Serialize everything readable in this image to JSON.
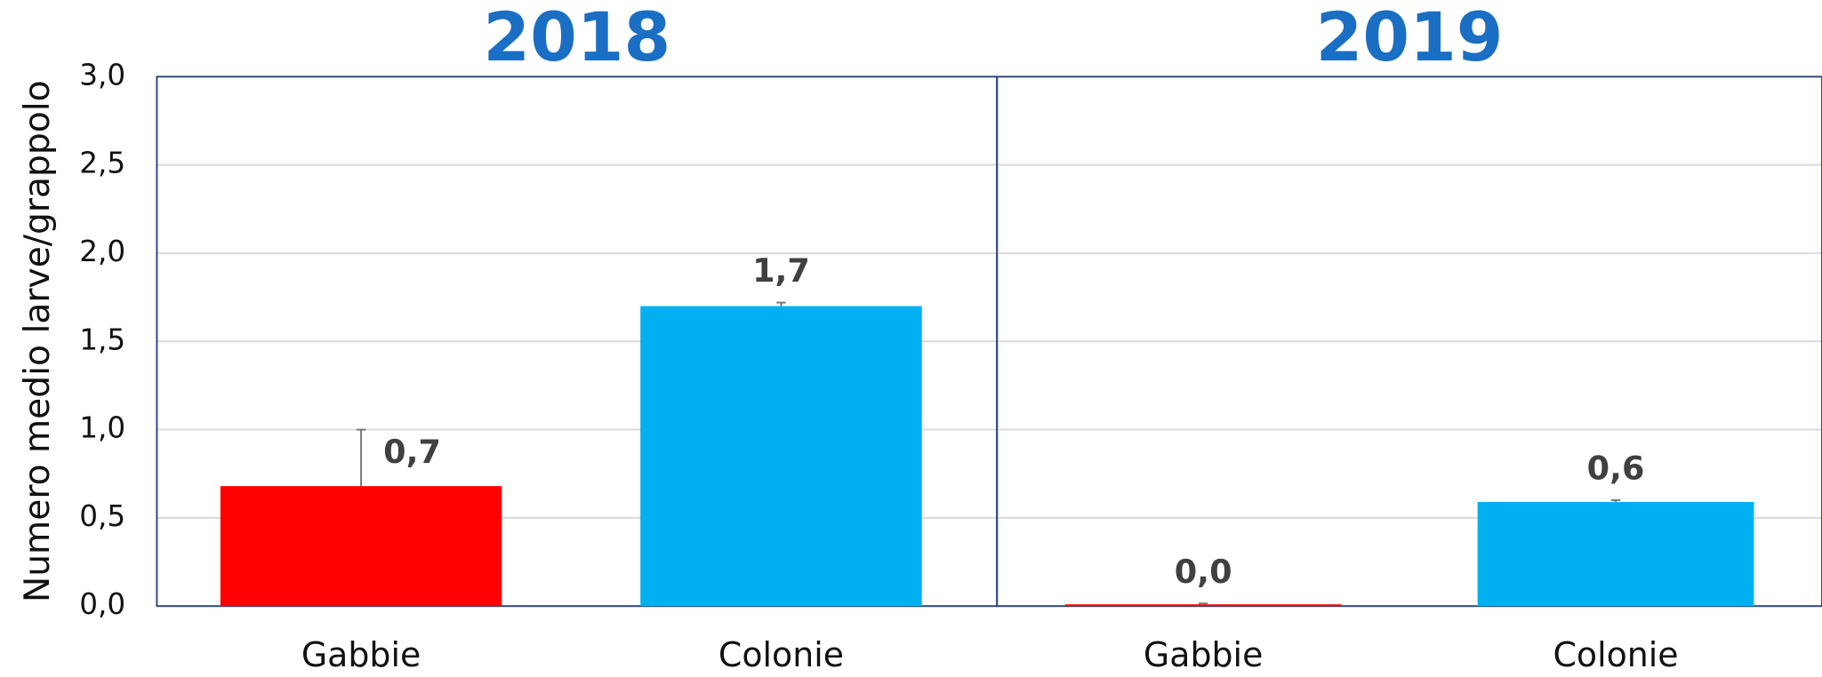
{
  "chart_data": [
    {
      "type": "bar",
      "title": "2018",
      "ylabel": "Numero medio larve/grappolo",
      "categories": [
        "Gabbie",
        "Colonie"
      ],
      "values": [
        0.68,
        1.7
      ],
      "value_labels": [
        "0,7",
        "1,7"
      ],
      "errors": [
        0.32,
        0.02
      ],
      "colors": [
        "#ff0000",
        "#00b0f0"
      ],
      "ylim": [
        0,
        3
      ],
      "grid": true,
      "yticks": [
        {
          "value": 0,
          "label": "0,0"
        },
        {
          "value": 0.5,
          "label": "0,5"
        },
        {
          "value": 1,
          "label": "1,0"
        },
        {
          "value": 1.5,
          "label": "1,5"
        },
        {
          "value": 2,
          "label": "2,0"
        },
        {
          "value": 2.5,
          "label": "2,5"
        },
        {
          "value": 3,
          "label": "3,0"
        }
      ]
    },
    {
      "type": "bar",
      "title": "2019",
      "categories": [
        "Gabbie",
        "Colonie"
      ],
      "values": [
        0.01,
        0.59
      ],
      "value_labels": [
        "0,0",
        "0,6"
      ],
      "errors": [
        0.005,
        0.01
      ],
      "colors": [
        "#ff0000",
        "#00b0f0"
      ],
      "ylim": [
        0,
        3
      ],
      "grid": true
    }
  ]
}
